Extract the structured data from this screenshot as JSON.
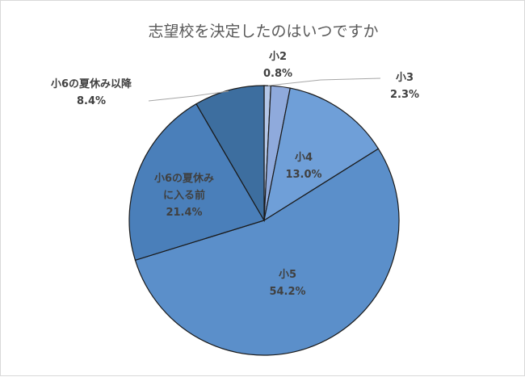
{
  "chart_data": {
    "type": "pie",
    "title": "志望校を決定したのはいつですか",
    "categories": [
      "小2",
      "小3",
      "小4",
      "小5",
      "小6の夏休みに入る前",
      "小6の夏休み以降"
    ],
    "values": [
      0.8,
      2.3,
      13.0,
      54.2,
      21.4,
      8.4
    ],
    "value_labels": [
      "0.8%",
      "2.3%",
      "13.0%",
      "54.2%",
      "21.4%",
      "8.4%"
    ],
    "label_lines": [
      [
        "小2"
      ],
      [
        "小3"
      ],
      [
        "小4"
      ],
      [
        "小5"
      ],
      [
        "小6の夏休み",
        "に入る前"
      ],
      [
        "小6の夏休み以降"
      ]
    ],
    "colors": [
      "#b4c7e7",
      "#8faadc",
      "#6f9fd8",
      "#5b8fca",
      "#4a7fba",
      "#3d6e9f"
    ],
    "start_angle_deg": 0,
    "direction": "clockwise",
    "legend": "none"
  }
}
